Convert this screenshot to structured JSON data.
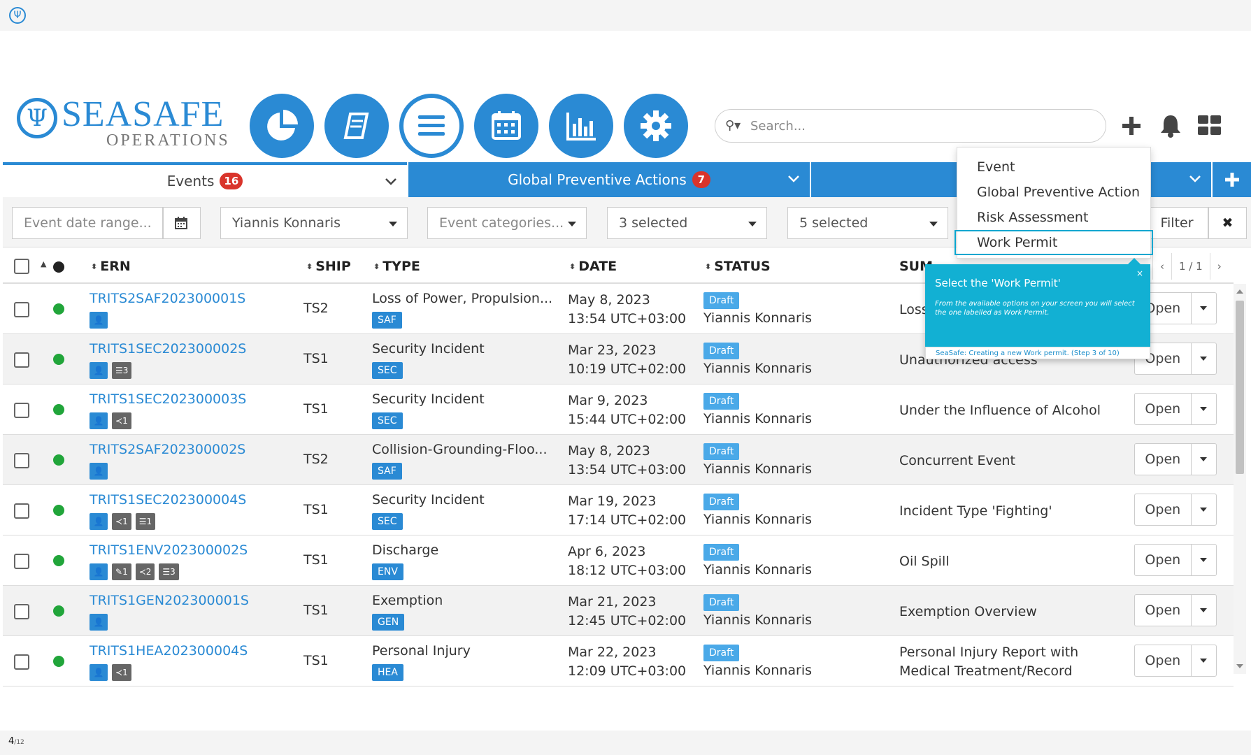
{
  "header": {
    "brand_main": "SEASAFE",
    "brand_sub": "OPERATIONS",
    "search_placeholder": "Search..."
  },
  "tabs": {
    "events_label": "Events",
    "events_count": "16",
    "gpa_label": "Global Preventive Actions",
    "gpa_count": "7"
  },
  "filters": {
    "date_placeholder": "Event date range...",
    "owner": "Yiannis Konnaris",
    "categories_placeholder": "Event categories...",
    "filter3": "3 selected",
    "filter4": "5 selected",
    "filter_button": "Filter",
    "clear": "✖"
  },
  "table": {
    "headers": {
      "ern": "ERN",
      "ship": "SHIP",
      "type": "TYPE",
      "date": "DATE",
      "status": "STATUS",
      "summary": "SUM"
    },
    "pager": {
      "prev": "‹",
      "page": "1 / 1",
      "next": "›"
    },
    "open_label": "Open",
    "rows": [
      {
        "ern": "TRITS2SAF202300001S",
        "ship": "TS2",
        "type": "Loss of Power, Propulsion...",
        "cat": "SAF",
        "date": "May 8, 2023",
        "time": "13:54 UTC+03:00",
        "status": "Draft",
        "owner": "Yiannis Konnaris",
        "summary": "Loss",
        "summary2": ""
      },
      {
        "ern": "TRITS1SEC202300002S",
        "ship": "TS1",
        "type": "Security Incident",
        "cat": "SEC",
        "date": "Mar 23, 2023",
        "time": "10:19 UTC+02:00",
        "status": "Draft",
        "owner": "Yiannis Konnaris",
        "summary": "Unauthorized access",
        "summary2": "",
        "tag1": "3"
      },
      {
        "ern": "TRITS1SEC202300003S",
        "ship": "TS1",
        "type": "Security Incident",
        "cat": "SEC",
        "date": "Mar 9, 2023",
        "time": "15:44 UTC+02:00",
        "status": "Draft",
        "owner": "Yiannis Konnaris",
        "summary": "Under the Influence of Alcohol",
        "summary2": "",
        "tag1": "1"
      },
      {
        "ern": "TRITS2SAF202300002S",
        "ship": "TS2",
        "type": "Collision-Grounding-Floo...",
        "cat": "SAF",
        "date": "May 8, 2023",
        "time": "13:54 UTC+03:00",
        "status": "Draft",
        "owner": "Yiannis Konnaris",
        "summary": "Concurrent Event",
        "summary2": ""
      },
      {
        "ern": "TRITS1SEC202300004S",
        "ship": "TS1",
        "type": "Security Incident",
        "cat": "SEC",
        "date": "Mar 19, 2023",
        "time": "17:14 UTC+02:00",
        "status": "Draft",
        "owner": "Yiannis Konnaris",
        "summary": "Incident Type 'Fighting'",
        "summary2": "",
        "tag1": "1",
        "tag2": "1"
      },
      {
        "ern": "TRITS1ENV202300002S",
        "ship": "TS1",
        "type": "Discharge",
        "cat": "ENV",
        "date": "Apr 6, 2023",
        "time": "18:12 UTC+03:00",
        "status": "Draft",
        "owner": "Yiannis Konnaris",
        "summary": "Oil Spill",
        "summary2": "",
        "tag1": "1",
        "tag2": "2",
        "tag3": "3"
      },
      {
        "ern": "TRITS1GEN202300001S",
        "ship": "TS1",
        "type": "Exemption",
        "cat": "GEN",
        "date": "Mar 21, 2023",
        "time": "12:45 UTC+02:00",
        "status": "Draft",
        "owner": "Yiannis Konnaris",
        "summary": "Exemption Overview",
        "summary2": ""
      },
      {
        "ern": "TRITS1HEA202300004S",
        "ship": "TS1",
        "type": "Personal Injury",
        "cat": "HEA",
        "date": "Mar 22, 2023",
        "time": "12:09 UTC+03:00",
        "status": "Draft",
        "owner": "Yiannis Konnaris",
        "summary": "Personal Injury Report with",
        "summary2": "Medical Treatment/Record",
        "tag1": "1"
      }
    ]
  },
  "dropdown": {
    "items": [
      "Event",
      "Global Preventive Action",
      "Risk Assessment",
      "Work Permit"
    ]
  },
  "tour": {
    "close": "×",
    "title": "Select the 'Work Permit'",
    "body": "From the available options on your screen you will select the one labelled as Work Permit.",
    "footer": "SeaSafe: Creating a new Work permit. (Step 3 of 10)"
  },
  "footer": {
    "page": "4",
    "total": "/12"
  },
  "colors": {
    "accent": "#2a8ad4",
    "badge": "#d9342b",
    "status_green": "#21a53a",
    "tour_bg": "#12b0d3"
  }
}
